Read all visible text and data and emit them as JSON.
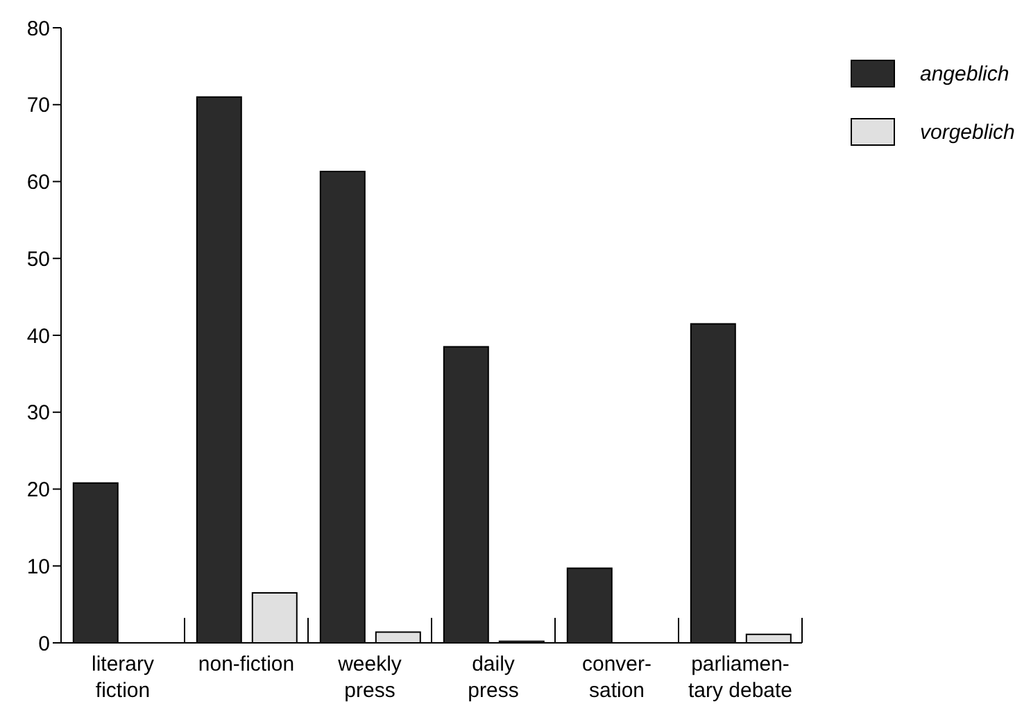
{
  "chart_data": {
    "type": "bar",
    "categories": [
      "literary\nfiction",
      "non-fiction",
      "weekly\npress",
      "daily\npress",
      "conver-\nsation",
      "parliamen-\ntary debate"
    ],
    "series": [
      {
        "name": "angeblich",
        "color": "#2b2b2b",
        "values": [
          20.8,
          71.0,
          61.3,
          38.5,
          9.7,
          41.5
        ]
      },
      {
        "name": "vorgeblich",
        "color": "#e0e0e0",
        "values": [
          0,
          6.5,
          1.4,
          0.2,
          0,
          1.1
        ]
      }
    ],
    "ylim": [
      0,
      80
    ],
    "yticks": [
      0,
      10,
      20,
      30,
      40,
      50,
      60,
      70,
      80
    ],
    "grid": false,
    "legend": "top right"
  }
}
